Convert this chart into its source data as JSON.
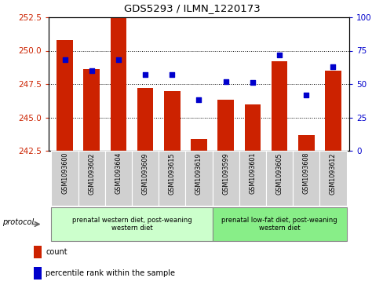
{
  "title": "GDS5293 / ILMN_1220173",
  "samples": [
    "GSM1093600",
    "GSM1093602",
    "GSM1093604",
    "GSM1093609",
    "GSM1093615",
    "GSM1093619",
    "GSM1093599",
    "GSM1093601",
    "GSM1093605",
    "GSM1093608",
    "GSM1093612"
  ],
  "bar_values": [
    250.8,
    248.6,
    252.5,
    247.2,
    247.0,
    243.4,
    246.3,
    246.0,
    249.2,
    243.7,
    248.5
  ],
  "dot_values": [
    68,
    60,
    68,
    57,
    57,
    38,
    52,
    51,
    72,
    42,
    63
  ],
  "ylim_left": [
    242.5,
    252.5
  ],
  "ylim_right": [
    0,
    100
  ],
  "yticks_left": [
    242.5,
    245.0,
    247.5,
    250.0,
    252.5
  ],
  "yticks_right": [
    0,
    25,
    50,
    75,
    100
  ],
  "bar_color": "#cc2200",
  "dot_color": "#0000cc",
  "bar_bottom": 242.5,
  "protocol_groups": [
    {
      "label": "prenatal western diet, post-weaning\nwestern diet",
      "start": 0,
      "end": 6,
      "color": "#ccffcc"
    },
    {
      "label": "prenatal low-fat diet, post-weaning\nwestern diet",
      "start": 6,
      "end": 11,
      "color": "#88ee88"
    }
  ],
  "legend_items": [
    {
      "label": "count",
      "color": "#cc2200"
    },
    {
      "label": "percentile rank within the sample",
      "color": "#0000cc"
    }
  ],
  "protocol_label": "protocol",
  "axis_color_left": "#cc2200",
  "axis_color_right": "#0000cc",
  "sample_box_color": "#d0d0d0",
  "grid_yticks": [
    245.0,
    247.5,
    250.0
  ]
}
